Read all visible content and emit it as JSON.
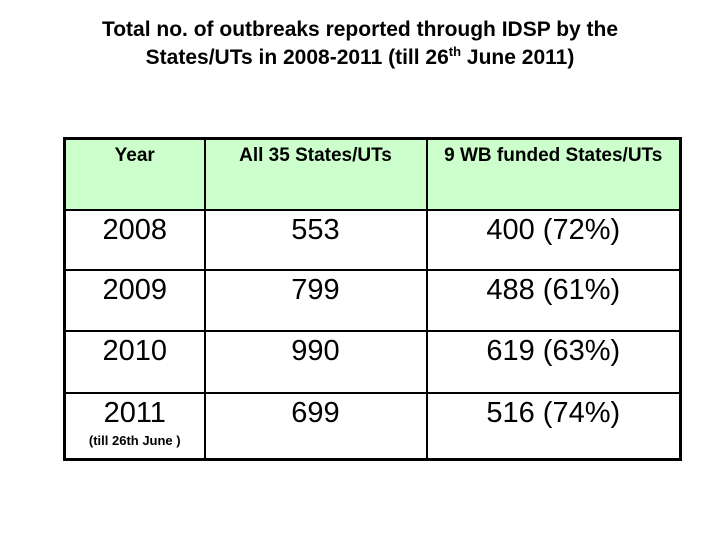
{
  "title": {
    "line1": "Total no. of outbreaks reported through IDSP by the",
    "line2_prefix": "States/UTs in 2008-2011 (till 26",
    "line2_superscript": "th",
    "line2_suffix": " June 2011)"
  },
  "table": {
    "columns": [
      "Year",
      "All 35 States/UTs",
      "9 WB funded States/UTs"
    ],
    "rows": [
      {
        "year": "2008",
        "all_states": "553",
        "wb_states": "400 (72%)"
      },
      {
        "year": "2009",
        "all_states": "799",
        "wb_states": "488 (61%)"
      },
      {
        "year": "2010",
        "all_states": "990",
        "wb_states": "619 (63%)"
      },
      {
        "year": "2011",
        "year_note": "(till 26th June )",
        "all_states": "699",
        "wb_states": "516 (74%)"
      }
    ],
    "colors": {
      "header_bg": "#ccffcc",
      "border": "#000000",
      "text": "#000000"
    }
  }
}
